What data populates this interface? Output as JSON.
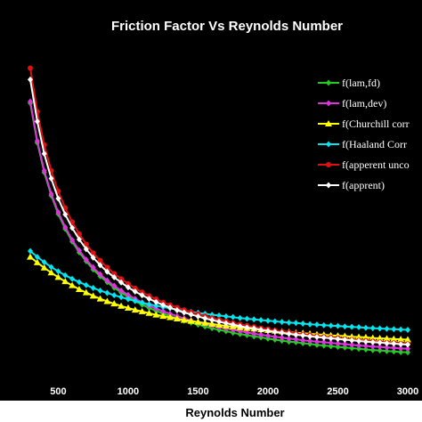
{
  "chart_data": {
    "type": "line",
    "title": "Friction Factor Vs Reynolds Number",
    "xlabel": "Reynolds Number",
    "ylabel": "",
    "xlim": [
      300,
      3000
    ],
    "ylim": [
      0,
      1
    ],
    "xticks": [
      500,
      1000,
      1500,
      2000,
      2500,
      3000
    ],
    "xtick_labels": [
      "500",
      "1000",
      "1500",
      "2000",
      "2500",
      "3000"
    ],
    "yticks": [],
    "grid": false,
    "legend": "right",
    "background": "#000000",
    "x": [
      300,
      350,
      400,
      450,
      500,
      550,
      600,
      650,
      700,
      750,
      800,
      850,
      900,
      950,
      1000,
      1050,
      1100,
      1150,
      1200,
      1250,
      1300,
      1350,
      1400,
      1450,
      1500,
      1550,
      1600,
      1650,
      1700,
      1750,
      1800,
      1850,
      1900,
      1950,
      2000,
      2050,
      2100,
      2150,
      2200,
      2250,
      2300,
      2350,
      2400,
      2450,
      2500,
      2550,
      2600,
      2650,
      2700,
      2750,
      2800,
      2850,
      2900,
      2950,
      3000
    ],
    "series": [
      {
        "name": "f(lam,fd)",
        "color": "#22cc22",
        "marker": "diamond",
        "values": [
          0.848,
          0.727,
          0.636,
          0.565,
          0.509,
          0.463,
          0.424,
          0.391,
          0.364,
          0.339,
          0.318,
          0.3,
          0.283,
          0.268,
          0.255,
          0.242,
          0.231,
          0.221,
          0.212,
          0.204,
          0.196,
          0.189,
          0.182,
          0.176,
          0.17,
          0.164,
          0.159,
          0.154,
          0.15,
          0.145,
          0.141,
          0.138,
          0.134,
          0.131,
          0.127,
          0.124,
          0.121,
          0.118,
          0.116,
          0.113,
          0.111,
          0.108,
          0.106,
          0.104,
          0.102,
          0.1,
          0.098,
          0.096,
          0.094,
          0.092,
          0.091,
          0.089,
          0.088,
          0.086,
          0.085
        ]
      },
      {
        "name": "f(lam,dev)",
        "color": "#dd33dd",
        "marker": "diamond",
        "values": [
          0.853,
          0.732,
          0.641,
          0.57,
          0.514,
          0.468,
          0.429,
          0.397,
          0.369,
          0.345,
          0.324,
          0.305,
          0.289,
          0.274,
          0.261,
          0.249,
          0.238,
          0.228,
          0.219,
          0.211,
          0.203,
          0.196,
          0.189,
          0.183,
          0.177,
          0.172,
          0.167,
          0.162,
          0.158,
          0.154,
          0.15,
          0.146,
          0.142,
          0.139,
          0.136,
          0.133,
          0.13,
          0.127,
          0.125,
          0.122,
          0.12,
          0.118,
          0.116,
          0.114,
          0.112,
          0.11,
          0.108,
          0.106,
          0.105,
          0.103,
          0.102,
          0.1,
          0.099,
          0.097,
          0.096
        ]
      },
      {
        "name": "f(Churchill corr",
        "color": "#ffff00",
        "marker": "triangle",
        "values": [
          0.377,
          0.36,
          0.344,
          0.329,
          0.315,
          0.302,
          0.29,
          0.278,
          0.268,
          0.258,
          0.249,
          0.241,
          0.234,
          0.227,
          0.221,
          0.215,
          0.21,
          0.205,
          0.2,
          0.196,
          0.192,
          0.188,
          0.184,
          0.181,
          0.178,
          0.175,
          0.172,
          0.169,
          0.166,
          0.164,
          0.161,
          0.159,
          0.157,
          0.155,
          0.153,
          0.151,
          0.149,
          0.147,
          0.145,
          0.144,
          0.142,
          0.14,
          0.139,
          0.137,
          0.136,
          0.135,
          0.133,
          0.132,
          0.131,
          0.129,
          0.128,
          0.127,
          0.126,
          0.125,
          0.124
        ]
      },
      {
        "name": "f(Haaland Corr",
        "color": "#00e5ee",
        "marker": "diamond",
        "values": [
          0.395,
          0.377,
          0.361,
          0.346,
          0.333,
          0.321,
          0.31,
          0.3,
          0.291,
          0.282,
          0.274,
          0.267,
          0.26,
          0.254,
          0.248,
          0.242,
          0.237,
          0.232,
          0.228,
          0.224,
          0.22,
          0.216,
          0.213,
          0.209,
          0.206,
          0.203,
          0.2,
          0.198,
          0.195,
          0.193,
          0.19,
          0.188,
          0.186,
          0.184,
          0.182,
          0.18,
          0.178,
          0.176,
          0.175,
          0.173,
          0.171,
          0.17,
          0.168,
          0.167,
          0.166,
          0.164,
          0.163,
          0.162,
          0.16,
          0.159,
          0.158,
          0.157,
          0.156,
          0.155,
          0.154
        ]
      },
      {
        "name": "f(apperent unco",
        "color": "#dd1111",
        "marker": "circle",
        "values": [
          0.955,
          0.822,
          0.72,
          0.641,
          0.578,
          0.527,
          0.484,
          0.448,
          0.416,
          0.389,
          0.366,
          0.345,
          0.326,
          0.31,
          0.295,
          0.281,
          0.269,
          0.258,
          0.248,
          0.238,
          0.23,
          0.222,
          0.215,
          0.208,
          0.202,
          0.196,
          0.19,
          0.185,
          0.18,
          0.175,
          0.171,
          0.167,
          0.163,
          0.159,
          0.156,
          0.152,
          0.149,
          0.146,
          0.143,
          0.14,
          0.138,
          0.135,
          0.133,
          0.131,
          0.129,
          0.126,
          0.124,
          0.122,
          0.121,
          0.119,
          0.117,
          0.115,
          0.114,
          0.112,
          0.111
        ]
      },
      {
        "name": "f(apprent)",
        "color": "#ffffff",
        "marker": "diamond",
        "values": [
          0.92,
          0.792,
          0.693,
          0.617,
          0.556,
          0.507,
          0.466,
          0.431,
          0.401,
          0.375,
          0.352,
          0.332,
          0.315,
          0.299,
          0.284,
          0.271,
          0.26,
          0.249,
          0.239,
          0.23,
          0.222,
          0.214,
          0.207,
          0.201,
          0.195,
          0.189,
          0.184,
          0.179,
          0.174,
          0.17,
          0.165,
          0.161,
          0.158,
          0.154,
          0.151,
          0.148,
          0.145,
          0.142,
          0.139,
          0.137,
          0.134,
          0.132,
          0.13,
          0.128,
          0.126,
          0.124,
          0.122,
          0.12,
          0.118,
          0.116,
          0.115,
          0.113,
          0.112,
          0.11,
          0.109
        ]
      }
    ]
  }
}
